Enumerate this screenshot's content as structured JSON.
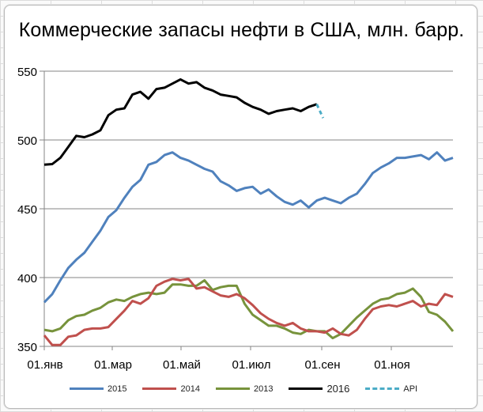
{
  "chart": {
    "title": "Коммерческие запасы нефти в США, млн. барр."
  },
  "axes": {
    "y_ticks": [
      "550",
      "500",
      "450",
      "400",
      "350"
    ],
    "x_ticks": [
      "01.янв",
      "01.мар",
      "01.май",
      "01.июл",
      "01.сен",
      "01.ноя"
    ]
  },
  "legend": [
    {
      "label": "2015",
      "color": "#4F81BD",
      "style": "solid"
    },
    {
      "label": "2014",
      "color": "#C0504D",
      "style": "solid"
    },
    {
      "label": "2013",
      "color": "#77933C",
      "style": "solid"
    },
    {
      "label": "2016",
      "color": "#000000",
      "style": "solid"
    },
    {
      "label": "API",
      "color": "#4BACC6",
      "style": "dashed"
    }
  ],
  "chart_data": {
    "type": "line",
    "title": "Коммерческие запасы нефти в США, млн. барр.",
    "xlabel": "",
    "ylabel": "",
    "ylim": [
      350,
      550
    ],
    "y_ticks": [
      350,
      400,
      450,
      500,
      550
    ],
    "x_tick_labels": [
      "01.янв",
      "01.мар",
      "01.май",
      "01.июл",
      "01.сен",
      "01.ноя"
    ],
    "x_unit": "week of year (0 = 01.янв)",
    "grid": "horizontal",
    "legend_position": "bottom",
    "series": [
      {
        "name": "2015",
        "color": "#4F81BD",
        "values": [
          382,
          388,
          398,
          407,
          413,
          418,
          426,
          434,
          444,
          449,
          458,
          466,
          471,
          482,
          484,
          489,
          491,
          487,
          485,
          482,
          479,
          477,
          470,
          467,
          463,
          465,
          466,
          461,
          464,
          459,
          455,
          453,
          456,
          451,
          456,
          458,
          456,
          454,
          458,
          461,
          468,
          476,
          480,
          483,
          487,
          487,
          488,
          489,
          486,
          491,
          485,
          487
        ]
      },
      {
        "name": "2014",
        "color": "#C0504D",
        "values": [
          358,
          351,
          351,
          357,
          358,
          362,
          363,
          363,
          364,
          370,
          376,
          383,
          381,
          385,
          394,
          397,
          399,
          398,
          399,
          392,
          393,
          390,
          387,
          386,
          388,
          385,
          380,
          374,
          370,
          367,
          365,
          367,
          363,
          361,
          361,
          360,
          363,
          359,
          358,
          362,
          370,
          377,
          379,
          380,
          379,
          381,
          383,
          379,
          381,
          380,
          388,
          386
        ]
      },
      {
        "name": "2013",
        "color": "#77933C",
        "values": [
          362,
          361,
          363,
          369,
          372,
          373,
          376,
          378,
          382,
          384,
          383,
          386,
          388,
          389,
          388,
          389,
          395,
          395,
          394,
          394,
          398,
          391,
          393,
          394,
          394,
          381,
          373,
          369,
          365,
          365,
          363,
          360,
          359,
          362,
          361,
          361,
          356,
          359,
          365,
          371,
          376,
          381,
          384,
          385,
          388,
          389,
          392,
          386,
          375,
          373,
          368,
          361
        ]
      },
      {
        "name": "2016",
        "color": "#000000",
        "values": [
          482,
          482.5,
          487,
          495,
          503,
          502,
          504,
          507,
          518,
          522,
          523,
          533,
          535,
          530,
          537,
          538,
          541,
          544,
          541,
          542,
          538,
          536,
          533,
          532,
          531,
          527,
          524,
          522,
          519,
          521,
          522,
          523,
          521,
          524,
          526
        ]
      },
      {
        "name": "API",
        "color": "#4BACC6",
        "style": "dashed",
        "start_week": 34,
        "values": [
          526,
          516
        ]
      }
    ]
  }
}
